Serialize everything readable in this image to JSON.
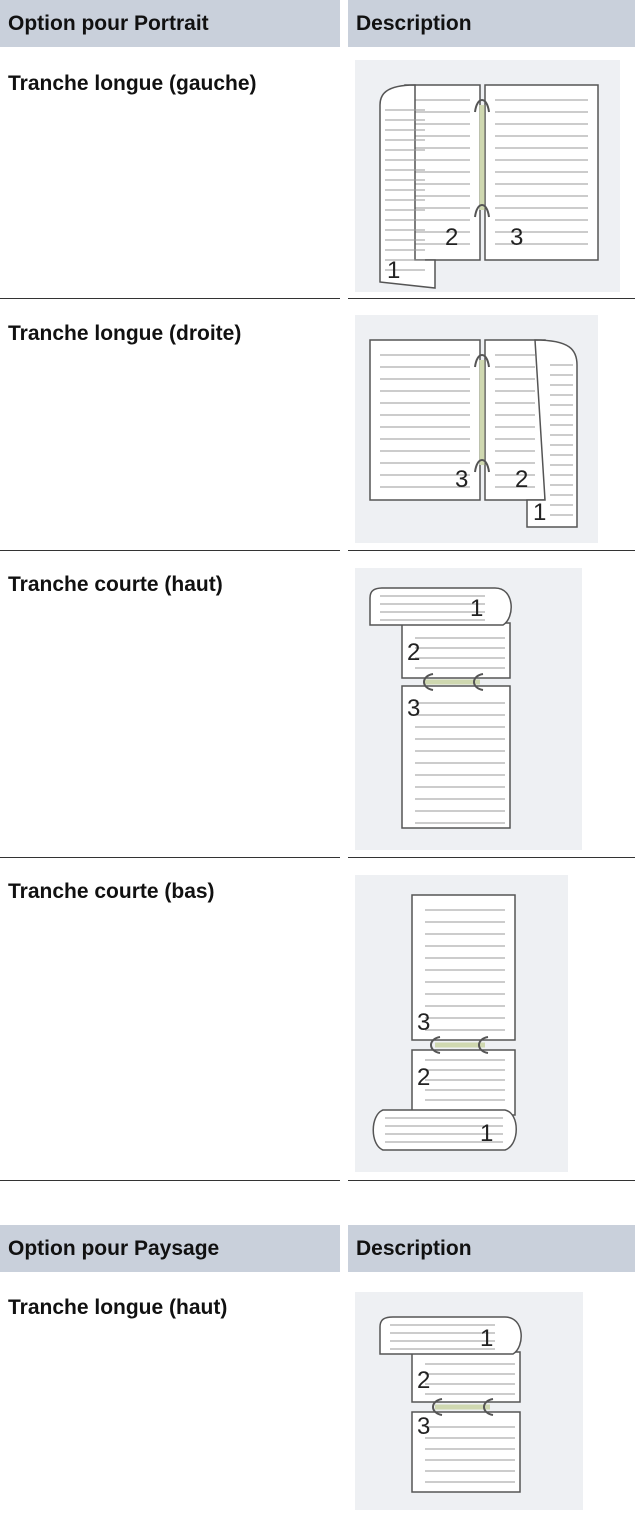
{
  "tables": [
    {
      "header": [
        "Option pour Portrait",
        "Description"
      ],
      "rows": [
        {
          "option": "Tranche longue (gauche)",
          "pages": [
            "2",
            "3",
            "1"
          ]
        },
        {
          "option": "Tranche longue (droite)",
          "pages": [
            "3",
            "2",
            "1"
          ]
        },
        {
          "option": "Tranche courte (haut)",
          "pages": [
            "1",
            "2",
            "3"
          ]
        },
        {
          "option": "Tranche courte (bas)",
          "pages": [
            "3",
            "2",
            "1"
          ]
        }
      ]
    },
    {
      "header": [
        "Option pour Paysage",
        "Description"
      ],
      "rows": [
        {
          "option": "Tranche longue (haut)",
          "pages": [
            "1",
            "2",
            "3"
          ]
        }
      ]
    }
  ]
}
